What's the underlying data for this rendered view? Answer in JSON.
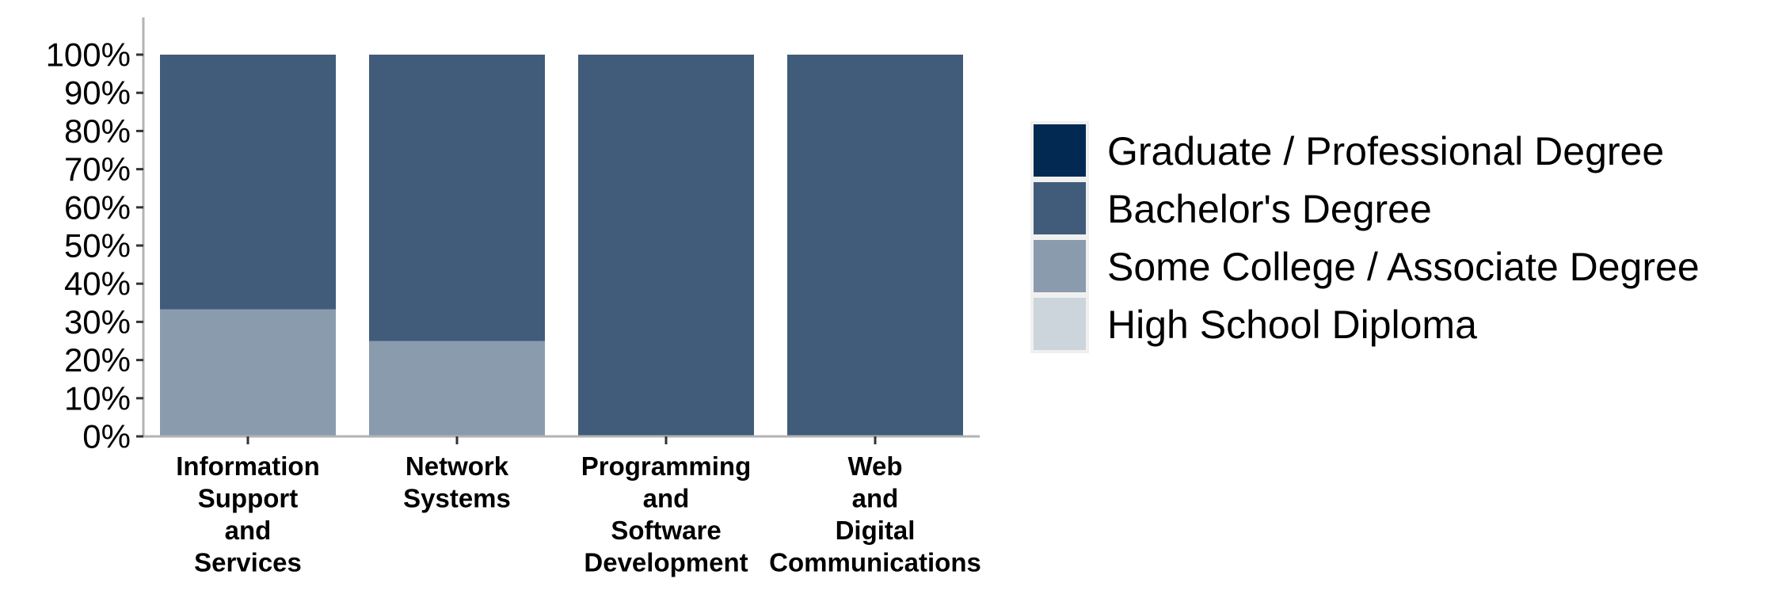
{
  "chart_data": {
    "type": "bar",
    "stacked": true,
    "categories": [
      [
        "Information",
        "Support",
        "and",
        "Services"
      ],
      [
        "Network",
        "Systems"
      ],
      [
        "Programming",
        "and",
        "Software",
        "Development"
      ],
      [
        "Web",
        "and",
        "Digital",
        "Communications"
      ]
    ],
    "series": [
      {
        "name": "High School Diploma",
        "color": "#ccd4dc",
        "values": [
          0,
          0,
          0,
          0
        ]
      },
      {
        "name": "Some College / Associate Degree",
        "color": "#8a9bad",
        "values": [
          33.3,
          25,
          0,
          0
        ]
      },
      {
        "name": "Bachelor's Degree",
        "color": "#415c7a",
        "values": [
          66.7,
          75,
          100,
          100
        ]
      },
      {
        "name": "Graduate / Professional Degree",
        "color": "#012951",
        "values": [
          0,
          0,
          0,
          0
        ]
      }
    ],
    "legend_order": [
      "Graduate / Professional Degree",
      "Bachelor's Degree",
      "Some College / Associate Degree",
      "High School Diploma"
    ],
    "yticks": [
      "0%",
      "10%",
      "20%",
      "30%",
      "40%",
      "50%",
      "60%",
      "70%",
      "80%",
      "90%",
      "100%"
    ],
    "ylim": [
      0,
      100
    ],
    "title": "",
    "xlabel": "",
    "ylabel": "",
    "grid": false,
    "legend_position": "right"
  }
}
